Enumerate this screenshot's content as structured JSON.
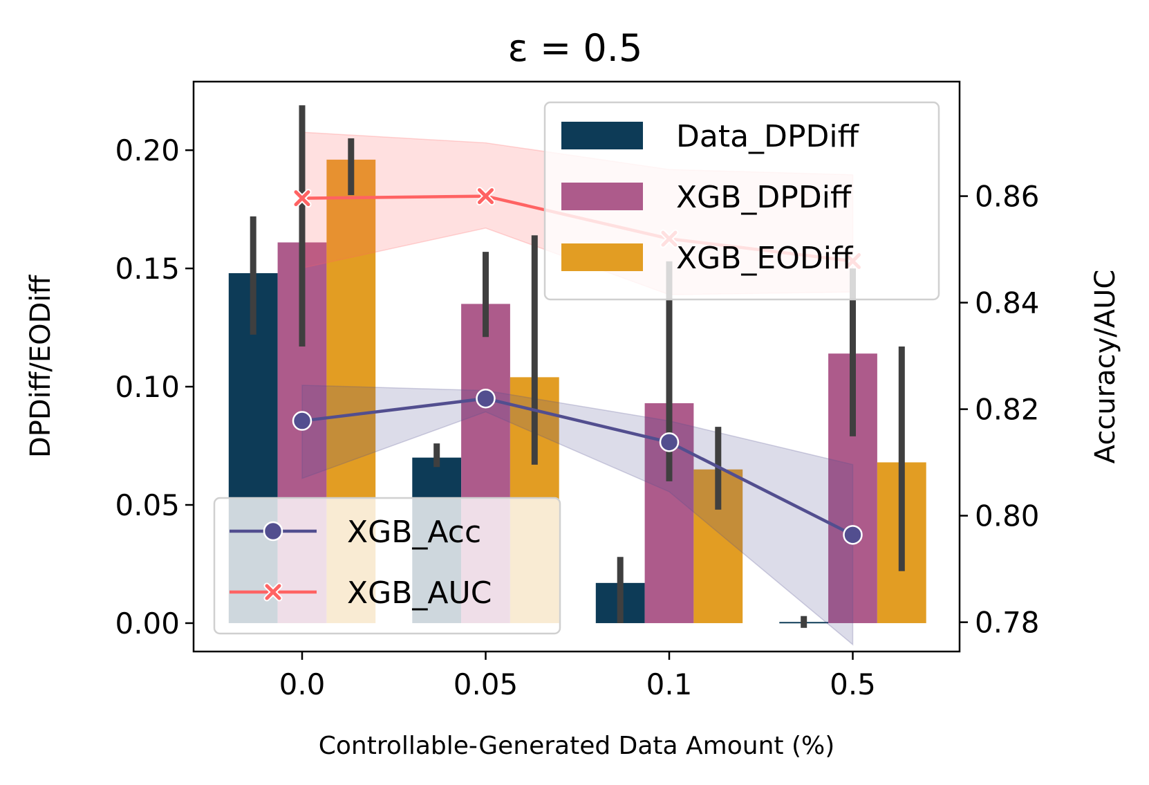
{
  "chart_data": {
    "type": "bar",
    "title": "ε = 0.5",
    "xlabel": "Controllable-Generated Data Amount (%)",
    "ylabel": "DPDiff/EODiff",
    "y2label": "Accuracy/AUC",
    "categories": [
      "0.0",
      "0.05",
      "0.1",
      "0.5"
    ],
    "ylim": [
      -0.012,
      0.229
    ],
    "y2lim": [
      0.7745,
      0.8815
    ],
    "yticks": [
      "0.00",
      "0.05",
      "0.10",
      "0.15",
      "0.20"
    ],
    "y2ticks": [
      "0.78",
      "0.80",
      "0.82",
      "0.84",
      "0.86"
    ],
    "bar_series": [
      {
        "name": "Data_DPDiff",
        "color": "#0d3b57",
        "values": [
          0.148,
          0.07,
          0.017,
          0.0005
        ],
        "err_low": [
          0.122,
          0.066,
          0.0,
          -0.002
        ],
        "err_high": [
          0.172,
          0.076,
          0.028,
          0.003
        ]
      },
      {
        "name": "XGB_DPDiff",
        "color": "#ad5b8b",
        "values": [
          0.161,
          0.135,
          0.093,
          0.114
        ],
        "err_low": [
          0.117,
          0.121,
          0.06,
          0.079
        ],
        "err_high": [
          0.219,
          0.157,
          0.153,
          0.15
        ]
      },
      {
        "name": "XGB_EODiff",
        "color": "#e29d23",
        "values": [
          0.196,
          0.104,
          0.065,
          0.068
        ],
        "err_low": [
          0.181,
          0.067,
          0.048,
          0.022
        ],
        "err_high": [
          0.205,
          0.164,
          0.083,
          0.117
        ]
      }
    ],
    "line_series": [
      {
        "name": "XGB_Acc",
        "color": "#524e8f",
        "marker": "circle",
        "values": [
          0.8178,
          0.822,
          0.8138,
          0.7964
        ],
        "band_low": [
          0.807,
          0.8195,
          0.8045,
          0.7758
        ],
        "band_high": [
          0.8245,
          0.8235,
          0.8178,
          0.8096
        ]
      },
      {
        "name": "XGB_AUC",
        "color": "#ff6363",
        "marker": "x",
        "values": [
          0.8596,
          0.86,
          0.852,
          0.8478
        ],
        "band_low": [
          0.8465,
          0.854,
          0.8415,
          0.842
        ],
        "band_high": [
          0.872,
          0.87,
          0.865,
          0.864
        ]
      }
    ],
    "legend_bars_position": "upper-right",
    "legend_lines_position": "lower-left",
    "grid": false
  }
}
